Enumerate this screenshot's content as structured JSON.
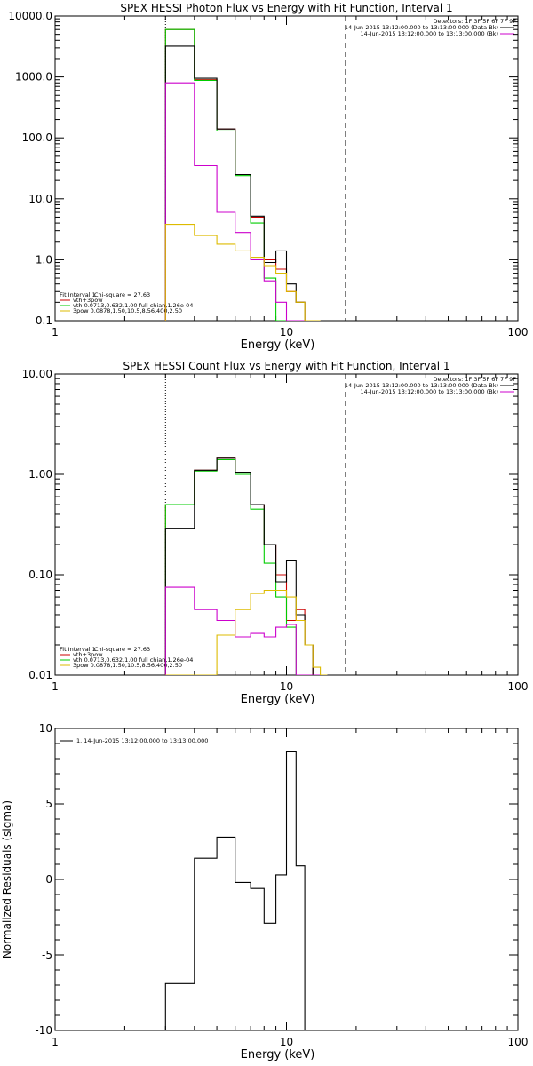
{
  "chart_data": [
    {
      "type": "line",
      "title": "SPEX HESSI Photon Flux vs Energy with Fit Function, Interval 1",
      "xlabel": "Energy (keV)",
      "ylabel": "",
      "x_scale": "log",
      "y_scale": "log",
      "xlim": [
        1,
        100
      ],
      "ylim": [
        0.1,
        10000
      ],
      "x_tick_labels": [
        "1",
        "10",
        "100"
      ],
      "y_tick_labels": [
        "0.1",
        "1.0",
        "10.0",
        "100.0",
        "1000.0",
        "10000.0"
      ],
      "vlines": [
        {
          "x": 3.0,
          "style": "dotted"
        },
        {
          "x": 18.0,
          "style": "dashed"
        }
      ],
      "detectors_label": "Detectors: 1F 3F 5F 6F 7F 9F",
      "legend_right": [
        {
          "text": "14-Jun-2015 13:12:00.000 to 13:13:00.000 (Data-Bk)",
          "color": "#000000"
        },
        {
          "text": "14-Jun-2015 13:12:00.000 to 13:13:00.000 (Bk)",
          "color": "#cc00cc"
        }
      ],
      "fit_header": {
        "left": "Fit Interval 1",
        "right": "Chi-square = 27.63"
      },
      "legend_left": [
        {
          "text": "vth+3pow",
          "color": "#cc0000"
        },
        {
          "text": "vth 0.0713,0.632,1.00  full chian,1.26e-04",
          "color": "#00cc00"
        },
        {
          "text": "3pow 0.0878,1.50,10.5,8.56,400,2.50",
          "color": "#ddbb00"
        }
      ],
      "edges": [
        3.0,
        4.0,
        5.0,
        6.0,
        7.0,
        8.0,
        9.0,
        10.0,
        11.0,
        12.0,
        13.0,
        14.0
      ],
      "series": [
        {
          "color": "#cc0000",
          "values": [
            6000,
            900,
            140,
            25,
            5,
            1.0,
            0.7,
            0.3,
            0.2,
            0.1,
            0.1
          ]
        },
        {
          "color": "#00cc00",
          "values": [
            6000,
            880,
            130,
            24,
            4,
            0.5,
            0.1,
            0.1,
            0.1,
            0.1,
            0.1
          ]
        },
        {
          "color": "#000000",
          "values": [
            3200,
            950,
            140,
            25,
            5.2,
            0.9,
            1.4,
            0.4,
            0.2,
            0.1,
            0.1
          ]
        },
        {
          "color": "#cc00cc",
          "values": [
            800,
            35,
            6,
            2.8,
            1.0,
            0.45,
            0.2,
            0.1,
            0.1,
            0.1,
            0.1
          ]
        },
        {
          "color": "#ddbb00",
          "values": [
            3.8,
            2.5,
            1.8,
            1.4,
            1.1,
            0.8,
            0.6,
            0.3,
            0.2,
            0.1,
            0.1
          ]
        }
      ]
    },
    {
      "type": "line",
      "title": "SPEX HESSI Count Flux vs Energy with Fit Function, Interval 1",
      "xlabel": "Energy (keV)",
      "ylabel": "",
      "x_scale": "log",
      "y_scale": "log",
      "xlim": [
        1,
        100
      ],
      "ylim": [
        0.01,
        10
      ],
      "x_tick_labels": [
        "1",
        "10",
        "100"
      ],
      "y_tick_labels": [
        "0.01",
        "0.10",
        "1.00",
        "10.00"
      ],
      "vlines": [
        {
          "x": 3.0,
          "style": "dotted"
        },
        {
          "x": 18.0,
          "style": "dashed"
        }
      ],
      "detectors_label": "Detectors: 1F 3F 5F 6F 7F 9F",
      "legend_right": [
        {
          "text": "14-Jun-2015 13:12:00.000 to 13:13:00.000 (Data-Bk)",
          "color": "#000000"
        },
        {
          "text": "14-Jun-2015 13:12:00.000 to 13:13:00.000 (Bk)",
          "color": "#cc00cc"
        }
      ],
      "fit_header": {
        "left": "Fit Interval 1",
        "right": "Chi-square = 27.63"
      },
      "legend_left": [
        {
          "text": "vth+3pow",
          "color": "#cc0000"
        },
        {
          "text": "vth 0.0713,0.632,1.00  full chian,1.26e-04",
          "color": "#00cc00"
        },
        {
          "text": "3pow 0.0878,1.50,10.5,8.56,400,2.50",
          "color": "#ddbb00"
        }
      ],
      "edges": [
        3.0,
        4.0,
        5.0,
        6.0,
        7.0,
        8.0,
        9.0,
        10.0,
        11.0,
        12.0,
        13.0,
        14.0,
        15.0
      ],
      "series": [
        {
          "color": "#cc0000",
          "values": [
            0.5,
            1.1,
            1.45,
            1.05,
            0.5,
            0.2,
            0.1,
            0.035,
            0.045,
            0.02,
            0.01,
            0.01
          ]
        },
        {
          "color": "#00cc00",
          "values": [
            0.5,
            1.08,
            1.4,
            1.0,
            0.45,
            0.13,
            0.06,
            0.03,
            0.01,
            0.01,
            0.01,
            0.01
          ]
        },
        {
          "color": "#000000",
          "values": [
            0.29,
            1.1,
            1.45,
            1.05,
            0.5,
            0.2,
            0.085,
            0.14,
            0.04,
            0.02,
            0.01,
            0.01
          ]
        },
        {
          "color": "#cc00cc",
          "values": [
            0.075,
            0.045,
            0.035,
            0.024,
            0.026,
            0.024,
            0.03,
            0.032,
            0.01,
            0.01,
            0.01,
            0.01
          ]
        },
        {
          "color": "#ddbb00",
          "values": [
            0.01,
            0.01,
            0.025,
            0.045,
            0.065,
            0.07,
            0.07,
            0.06,
            0.035,
            0.02,
            0.012,
            0.01
          ]
        }
      ]
    },
    {
      "type": "line",
      "title": "",
      "xlabel": "Energy (keV)",
      "ylabel": "Normalized Residuals (sigma)",
      "x_scale": "log",
      "y_scale": "linear",
      "xlim": [
        1,
        100
      ],
      "ylim": [
        -10,
        10
      ],
      "x_tick_labels": [
        "1",
        "10",
        "100"
      ],
      "y_tick_labels": [
        "-10",
        "-5",
        "0",
        "5",
        "10"
      ],
      "legend": [
        {
          "text": "1. 14-Jun-2015 13:12:00.000 to 13:13:00.000",
          "color": "#000000"
        }
      ],
      "edges": [
        3.0,
        4.0,
        5.0,
        6.0,
        7.0,
        8.0,
        9.0,
        10.0,
        11.0,
        12.0
      ],
      "series": [
        {
          "color": "#000000",
          "values": [
            -6.9,
            1.4,
            2.8,
            -0.2,
            -0.6,
            -2.9,
            0.3,
            8.5,
            0.9
          ]
        }
      ]
    }
  ]
}
